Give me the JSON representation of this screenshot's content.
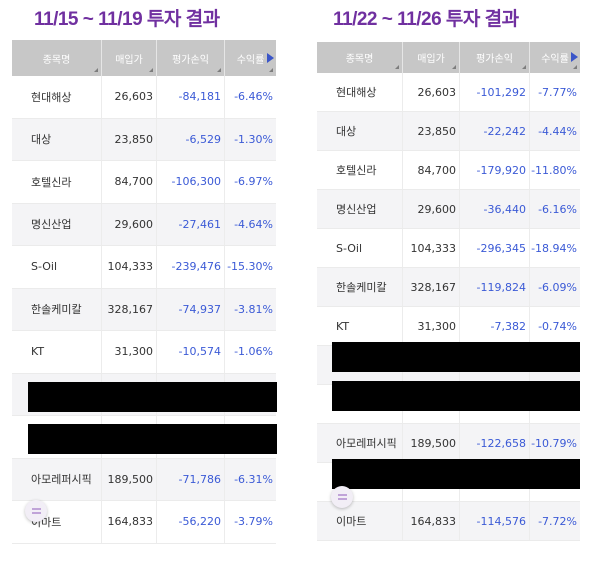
{
  "titles": {
    "left": "11/15 ~ 11/19 투자 결과",
    "right": "11/22 ~ 11/26 투자 결과"
  },
  "columns": [
    "종목명",
    "매입가",
    "평가손익",
    "수익률"
  ],
  "accent": "#3b5ad6",
  "left_rows": [
    {
      "name": "현대해상",
      "price": "26,603",
      "pnl": "-84,181",
      "rate": "-6.46%"
    },
    {
      "name": "대상",
      "price": "23,850",
      "pnl": "-6,529",
      "rate": "-1.30%"
    },
    {
      "name": "호텔신라",
      "price": "84,700",
      "pnl": "-106,300",
      "rate": "-6.97%"
    },
    {
      "name": "명신산업",
      "price": "29,600",
      "pnl": "-27,461",
      "rate": "-4.64%"
    },
    {
      "name": "S-Oil",
      "price": "104,333",
      "pnl": "-239,476",
      "rate": "-15.30%"
    },
    {
      "name": "한솔케미칼",
      "price": "328,167",
      "pnl": "-74,937",
      "rate": "-3.81%"
    },
    {
      "name": "KT",
      "price": "31,300",
      "pnl": "-10,574",
      "rate": "-1.06%"
    },
    {
      "name": "",
      "price": "",
      "pnl": "",
      "rate": ""
    },
    {
      "name": "",
      "price": "",
      "pnl": "",
      "rate": ""
    },
    {
      "name": "아모레퍼시픽",
      "price": "189,500",
      "pnl": "-71,786",
      "rate": "-6.31%"
    },
    {
      "name": "이마트",
      "price": "164,833",
      "pnl": "-56,220",
      "rate": "-3.79%"
    }
  ],
  "right_rows": [
    {
      "name": "현대해상",
      "price": "26,603",
      "pnl": "-101,292",
      "rate": "-7.77%"
    },
    {
      "name": "대상",
      "price": "23,850",
      "pnl": "-22,242",
      "rate": "-4.44%"
    },
    {
      "name": "호텔신라",
      "price": "84,700",
      "pnl": "-179,920",
      "rate": "-11.80%"
    },
    {
      "name": "명신산업",
      "price": "29,600",
      "pnl": "-36,440",
      "rate": "-6.16%"
    },
    {
      "name": "S-Oil",
      "price": "104,333",
      "pnl": "-296,345",
      "rate": "-18.94%"
    },
    {
      "name": "한솔케미칼",
      "price": "328,167",
      "pnl": "-119,824",
      "rate": "-6.09%"
    },
    {
      "name": "KT",
      "price": "31,300",
      "pnl": "-7,382",
      "rate": "-0.74%"
    },
    {
      "name": "",
      "price": "",
      "pnl": "",
      "rate": ""
    },
    {
      "name": "",
      "price": "",
      "pnl": "",
      "rate": ""
    },
    {
      "name": "아모레퍼시픽",
      "price": "189,500",
      "pnl": "-122,658",
      "rate": "-10.79%"
    },
    {
      "name": "",
      "price": "",
      "pnl": "",
      "rate": ""
    },
    {
      "name": "이마트",
      "price": "164,833",
      "pnl": "-114,576",
      "rate": "-7.72%"
    }
  ]
}
